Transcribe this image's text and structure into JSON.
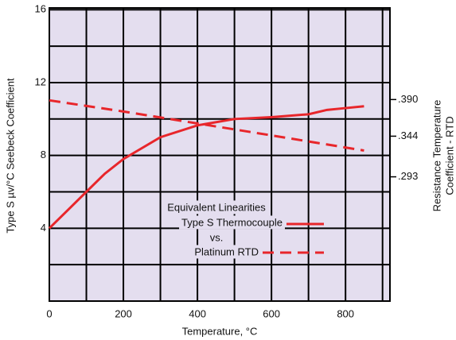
{
  "chart_data": {
    "type": "line",
    "xlabel": "Temperature, °C",
    "ylabel": "Type S  µv/°C Seebeck Coefficient",
    "y2label": [
      "Resistance Temperature",
      "Coefficient - RTD"
    ],
    "xlim": [
      0,
      920
    ],
    "xticks": [
      0,
      200,
      400,
      600,
      800
    ],
    "minor_xticks": [
      100,
      300,
      500,
      700,
      900
    ],
    "ylim": [
      0,
      16.1
    ],
    "yticks": [
      4,
      8,
      12,
      16
    ],
    "minor_yticks": [
      2,
      6,
      10,
      14
    ],
    "y2lim": [
      0.137,
      0.505
    ],
    "y2ticks": [
      {
        "value": 0.39,
        "label": ".390"
      },
      {
        "value": 0.344,
        "label": ".344"
      },
      {
        "value": 0.293,
        "label": ".293"
      }
    ],
    "grid": true,
    "background": "#e4deef",
    "legend_title": "Equivalent Linearities",
    "legend_separator": "vs.",
    "series": [
      {
        "name": "Type S Thermocouple",
        "color": "#e8262b",
        "dash": false,
        "x": [
          0,
          50,
          100,
          150,
          200,
          300,
          400,
          500,
          600,
          700,
          750,
          800,
          850
        ],
        "values": [
          4.0,
          5.0,
          6.0,
          7.0,
          7.8,
          9.0,
          9.65,
          10.0,
          10.1,
          10.26,
          10.5,
          10.6,
          10.7
        ]
      },
      {
        "name": "Platinum RTD",
        "color": "#e8262b",
        "dash": true,
        "axis": "y2",
        "x": [
          0,
          200,
          400,
          600,
          850
        ],
        "values": [
          0.389,
          0.375,
          0.36,
          0.345,
          0.326
        ]
      }
    ]
  }
}
